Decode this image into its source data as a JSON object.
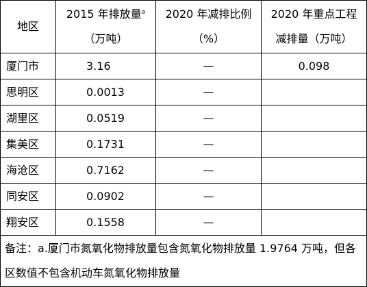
{
  "table": {
    "header": [
      {
        "lines": [
          "地区"
        ]
      },
      {
        "lines": [
          "2015 年排放量",
          "（万吨）"
        ],
        "sup": "a"
      },
      {
        "lines": [
          "2020 年减排比例",
          "（%）"
        ]
      },
      {
        "lines": [
          "2020 年重点工程",
          "减排量（万吨）"
        ]
      }
    ],
    "rows": [
      [
        "厦门市",
        "3.16",
        "—",
        "0.098"
      ],
      [
        "思明区",
        "0.0013",
        "—"
      ],
      [
        "湖里区",
        "0.0519",
        "—"
      ],
      [
        "集美区",
        "0.1731",
        "—"
      ],
      [
        "海沧区",
        "0.7162",
        "—"
      ],
      [
        "同安区",
        "0.0902",
        "—"
      ],
      [
        "翔安区",
        "0.1558",
        "—"
      ]
    ],
    "note": "备注：a.厦门市氮氧化物排放量包含氮氧化物排放量 1.9764 万吨，但各区数值不包含机动车氮氧化物排放量"
  }
}
